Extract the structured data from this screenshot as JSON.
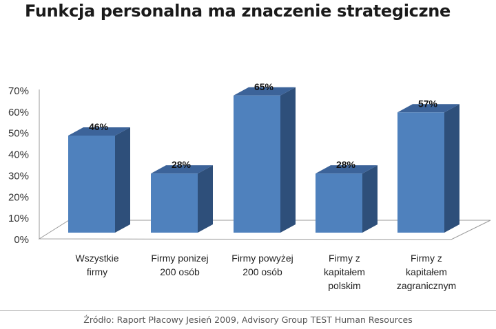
{
  "chart_data": {
    "type": "bar",
    "title": "Funkcja personalna ma znaczenie strategiczne",
    "categories": [
      [
        "Wszystkie",
        "firmy"
      ],
      [
        "Firmy ponizej",
        "200 osób"
      ],
      [
        "Firmy powyżej",
        "200 osób"
      ],
      [
        "Firmy z",
        "kapitałem",
        "polskim"
      ],
      [
        "Firmy z",
        "kapitałem",
        "zagranicznym"
      ]
    ],
    "values": [
      46,
      28,
      65,
      28,
      57
    ],
    "data_labels": [
      "46%",
      "28%",
      "65%",
      "28%",
      "57%"
    ],
    "ylim": [
      0,
      70
    ],
    "yticks": [
      "0%",
      "10%",
      "20%",
      "30%",
      "40%",
      "50%",
      "60%",
      "70%"
    ],
    "xlabel": "",
    "ylabel": "",
    "grid": false,
    "style": "3d-column",
    "colors": {
      "front": "#4f81bd",
      "side": "#2e4f7a",
      "top": "#3c6399"
    }
  },
  "source": "Źródło: Raport Płacowy Jesień 2009, Advisory Group TEST Human Resources"
}
